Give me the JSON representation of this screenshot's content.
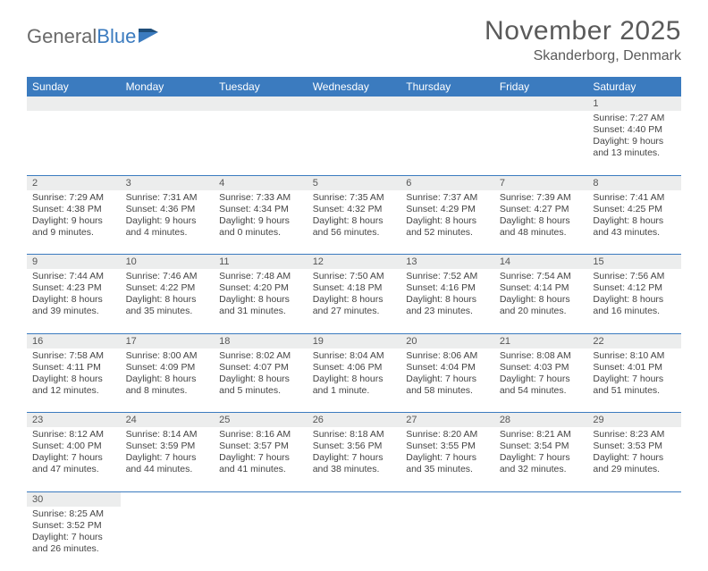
{
  "logo": {
    "general": "General",
    "blue": "Blue"
  },
  "title": "November 2025",
  "location": "Skanderborg, Denmark",
  "colors": {
    "header_bg": "#3b7bbf",
    "header_text": "#ffffff",
    "daynum_bg": "#eceded",
    "text": "#444444",
    "title_text": "#5a5a5a",
    "border": "#3b7bbf"
  },
  "days_of_week": [
    "Sunday",
    "Monday",
    "Tuesday",
    "Wednesday",
    "Thursday",
    "Friday",
    "Saturday"
  ],
  "weeks": [
    [
      null,
      null,
      null,
      null,
      null,
      null,
      {
        "n": "1",
        "sunrise": "7:27 AM",
        "sunset": "4:40 PM",
        "daylight": "9 hours and 13 minutes."
      }
    ],
    [
      {
        "n": "2",
        "sunrise": "7:29 AM",
        "sunset": "4:38 PM",
        "daylight": "9 hours and 9 minutes."
      },
      {
        "n": "3",
        "sunrise": "7:31 AM",
        "sunset": "4:36 PM",
        "daylight": "9 hours and 4 minutes."
      },
      {
        "n": "4",
        "sunrise": "7:33 AM",
        "sunset": "4:34 PM",
        "daylight": "9 hours and 0 minutes."
      },
      {
        "n": "5",
        "sunrise": "7:35 AM",
        "sunset": "4:32 PM",
        "daylight": "8 hours and 56 minutes."
      },
      {
        "n": "6",
        "sunrise": "7:37 AM",
        "sunset": "4:29 PM",
        "daylight": "8 hours and 52 minutes."
      },
      {
        "n": "7",
        "sunrise": "7:39 AM",
        "sunset": "4:27 PM",
        "daylight": "8 hours and 48 minutes."
      },
      {
        "n": "8",
        "sunrise": "7:41 AM",
        "sunset": "4:25 PM",
        "daylight": "8 hours and 43 minutes."
      }
    ],
    [
      {
        "n": "9",
        "sunrise": "7:44 AM",
        "sunset": "4:23 PM",
        "daylight": "8 hours and 39 minutes."
      },
      {
        "n": "10",
        "sunrise": "7:46 AM",
        "sunset": "4:22 PM",
        "daylight": "8 hours and 35 minutes."
      },
      {
        "n": "11",
        "sunrise": "7:48 AM",
        "sunset": "4:20 PM",
        "daylight": "8 hours and 31 minutes."
      },
      {
        "n": "12",
        "sunrise": "7:50 AM",
        "sunset": "4:18 PM",
        "daylight": "8 hours and 27 minutes."
      },
      {
        "n": "13",
        "sunrise": "7:52 AM",
        "sunset": "4:16 PM",
        "daylight": "8 hours and 23 minutes."
      },
      {
        "n": "14",
        "sunrise": "7:54 AM",
        "sunset": "4:14 PM",
        "daylight": "8 hours and 20 minutes."
      },
      {
        "n": "15",
        "sunrise": "7:56 AM",
        "sunset": "4:12 PM",
        "daylight": "8 hours and 16 minutes."
      }
    ],
    [
      {
        "n": "16",
        "sunrise": "7:58 AM",
        "sunset": "4:11 PM",
        "daylight": "8 hours and 12 minutes."
      },
      {
        "n": "17",
        "sunrise": "8:00 AM",
        "sunset": "4:09 PM",
        "daylight": "8 hours and 8 minutes."
      },
      {
        "n": "18",
        "sunrise": "8:02 AM",
        "sunset": "4:07 PM",
        "daylight": "8 hours and 5 minutes."
      },
      {
        "n": "19",
        "sunrise": "8:04 AM",
        "sunset": "4:06 PM",
        "daylight": "8 hours and 1 minute."
      },
      {
        "n": "20",
        "sunrise": "8:06 AM",
        "sunset": "4:04 PM",
        "daylight": "7 hours and 58 minutes."
      },
      {
        "n": "21",
        "sunrise": "8:08 AM",
        "sunset": "4:03 PM",
        "daylight": "7 hours and 54 minutes."
      },
      {
        "n": "22",
        "sunrise": "8:10 AM",
        "sunset": "4:01 PM",
        "daylight": "7 hours and 51 minutes."
      }
    ],
    [
      {
        "n": "23",
        "sunrise": "8:12 AM",
        "sunset": "4:00 PM",
        "daylight": "7 hours and 47 minutes."
      },
      {
        "n": "24",
        "sunrise": "8:14 AM",
        "sunset": "3:59 PM",
        "daylight": "7 hours and 44 minutes."
      },
      {
        "n": "25",
        "sunrise": "8:16 AM",
        "sunset": "3:57 PM",
        "daylight": "7 hours and 41 minutes."
      },
      {
        "n": "26",
        "sunrise": "8:18 AM",
        "sunset": "3:56 PM",
        "daylight": "7 hours and 38 minutes."
      },
      {
        "n": "27",
        "sunrise": "8:20 AM",
        "sunset": "3:55 PM",
        "daylight": "7 hours and 35 minutes."
      },
      {
        "n": "28",
        "sunrise": "8:21 AM",
        "sunset": "3:54 PM",
        "daylight": "7 hours and 32 minutes."
      },
      {
        "n": "29",
        "sunrise": "8:23 AM",
        "sunset": "3:53 PM",
        "daylight": "7 hours and 29 minutes."
      }
    ],
    [
      {
        "n": "30",
        "sunrise": "8:25 AM",
        "sunset": "3:52 PM",
        "daylight": "7 hours and 26 minutes."
      },
      null,
      null,
      null,
      null,
      null,
      null
    ]
  ],
  "labels": {
    "sunrise_prefix": "Sunrise: ",
    "sunset_prefix": "Sunset: ",
    "daylight_prefix": "Daylight: "
  }
}
